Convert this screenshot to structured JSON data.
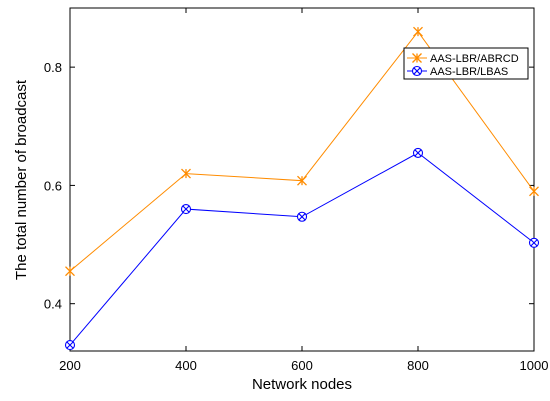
{
  "chart_data": {
    "type": "line",
    "title": "",
    "xlabel": "Network nodes",
    "ylabel": "The total number of broadcast",
    "x": [
      200,
      400,
      600,
      800,
      1000
    ],
    "xticks": [
      "200",
      "400",
      "600",
      "800",
      "1000"
    ],
    "yticks": [
      "0.4",
      "0.6",
      "0.8"
    ],
    "xlim": [
      200,
      1000
    ],
    "ylim": [
      0.32,
      0.9
    ],
    "grid": false,
    "legend_position": "top-right",
    "series": [
      {
        "name": "AAS-LBR/ABRCD",
        "values": [
          0.455,
          0.62,
          0.608,
          0.86,
          0.59
        ],
        "color": "#ff8c00",
        "marker": "star"
      },
      {
        "name": "AAS-LBR/LBAS",
        "values": [
          0.33,
          0.56,
          0.547,
          0.655,
          0.503
        ],
        "color": "#0000ff",
        "marker": "crossed-circle"
      }
    ]
  }
}
